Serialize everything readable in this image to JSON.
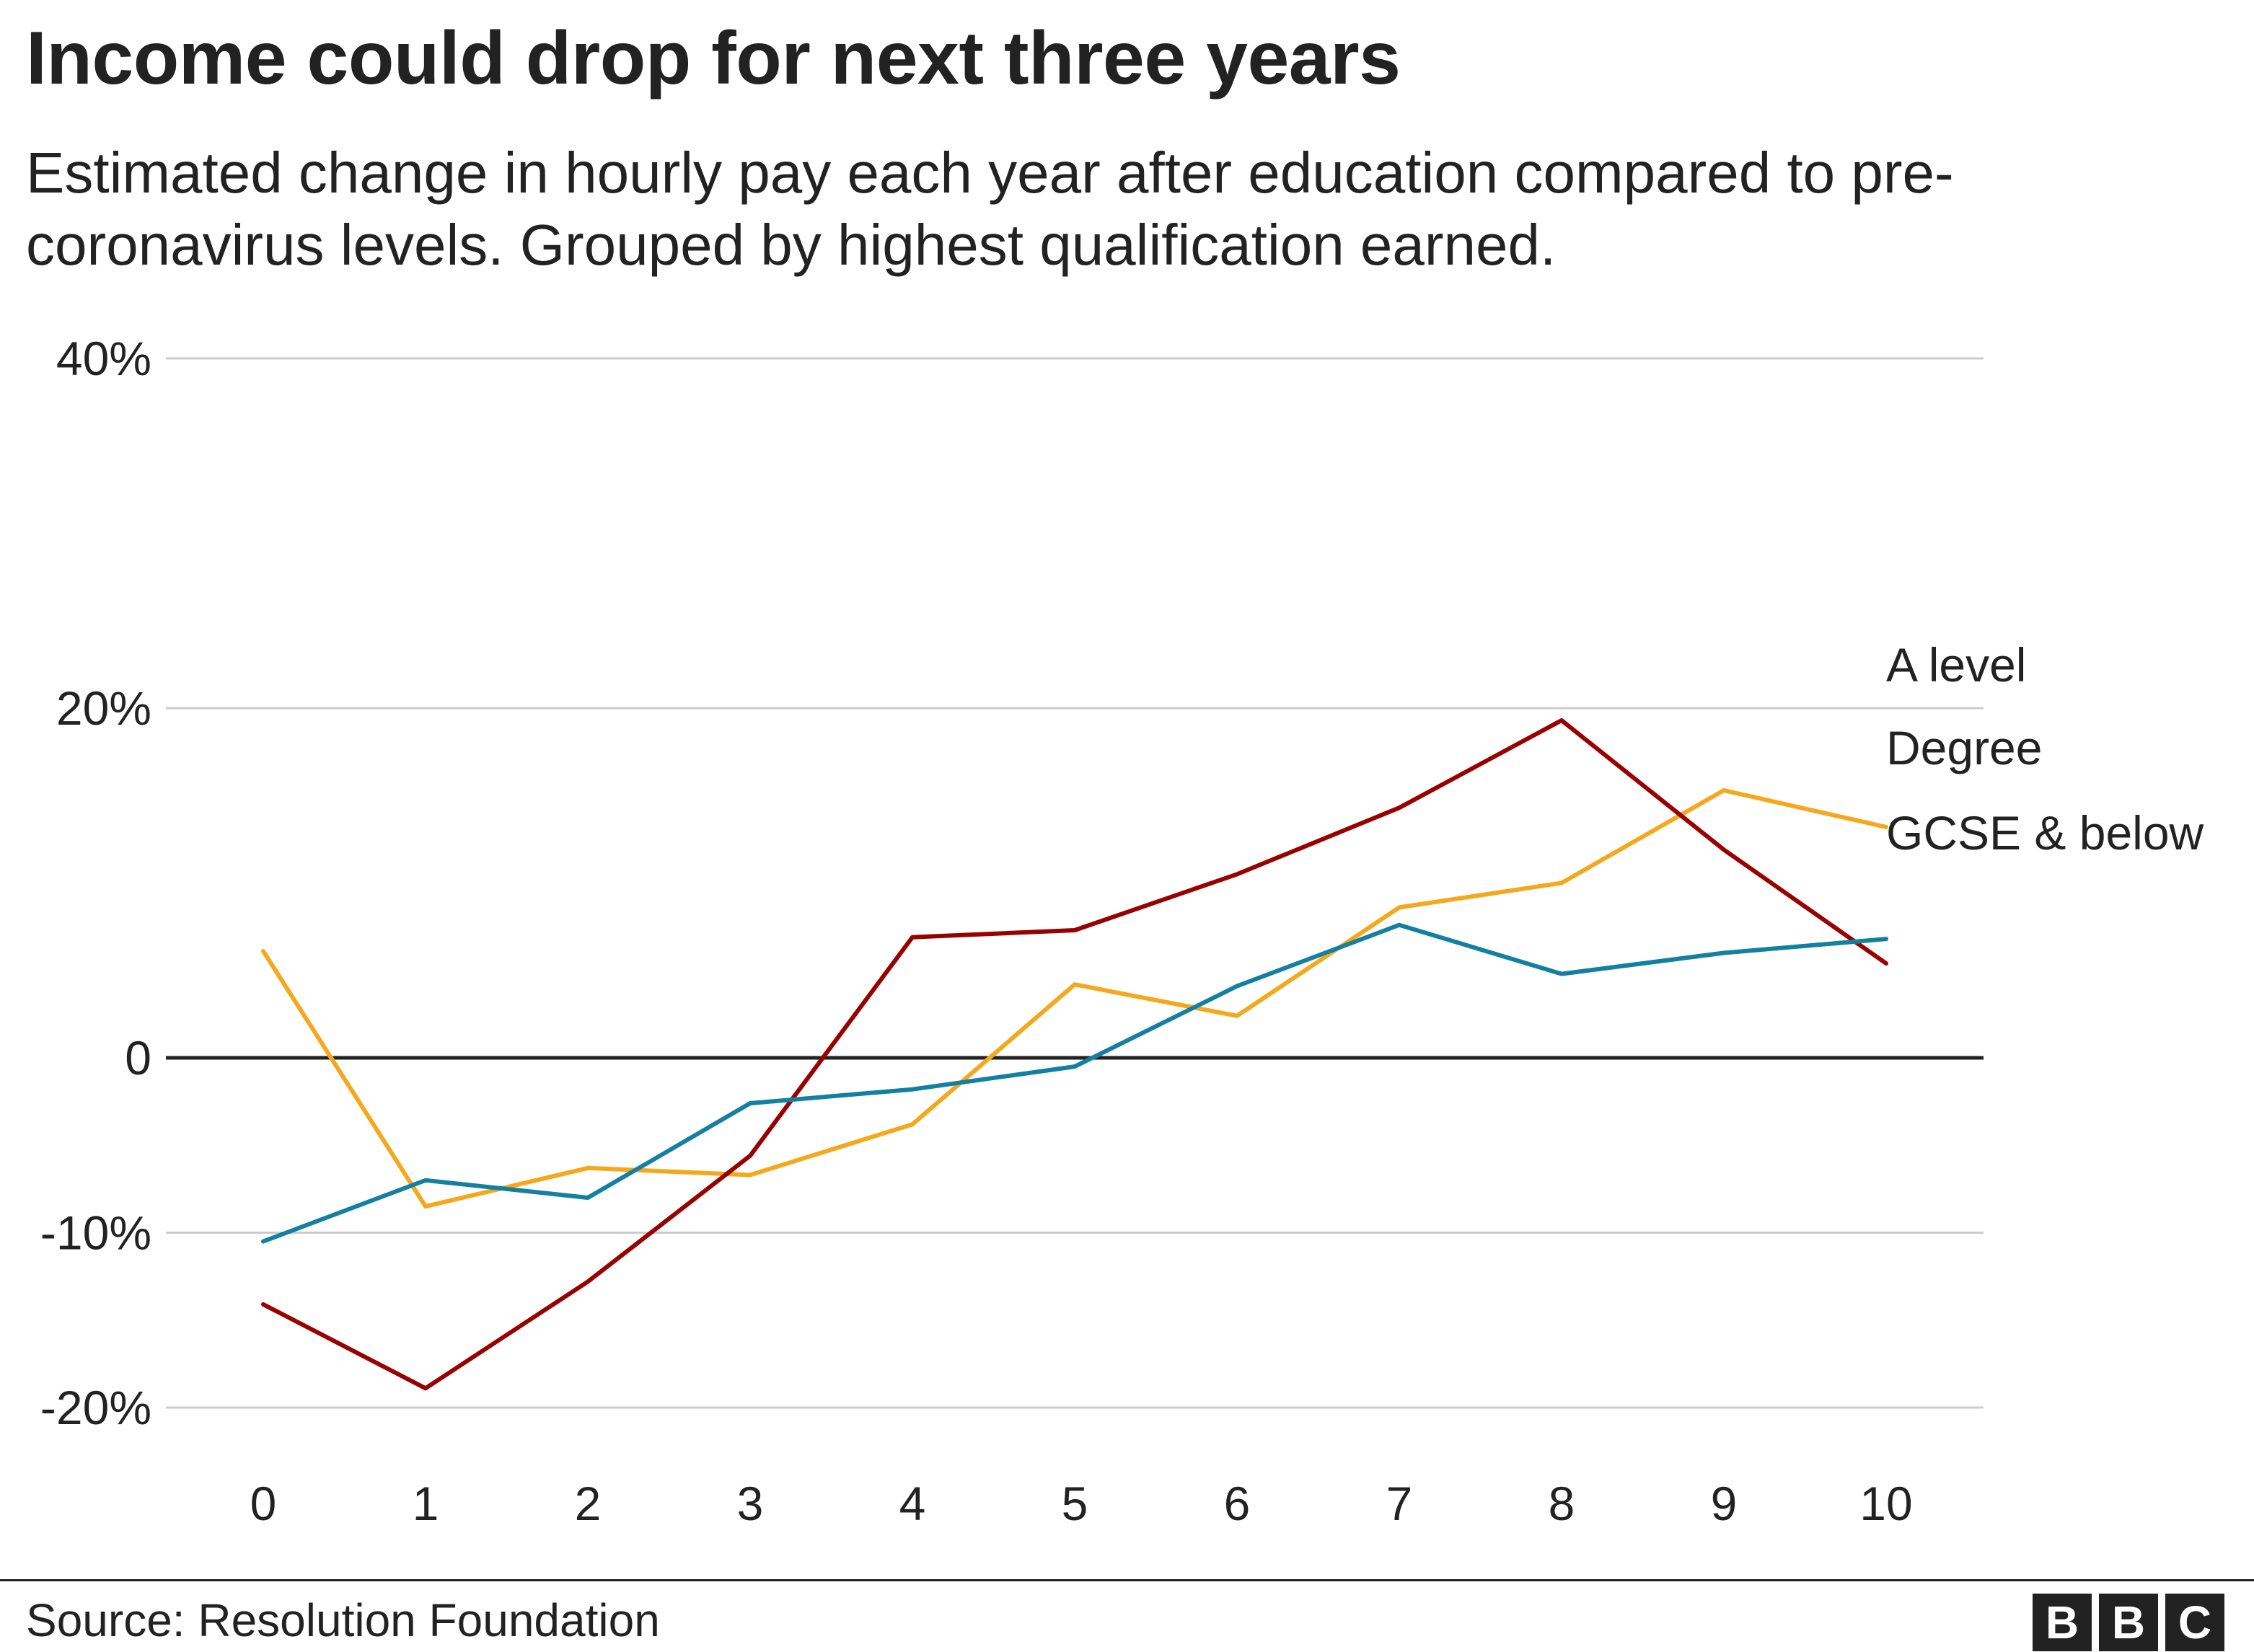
{
  "title": "Income could drop for next three years",
  "subtitle": "Estimated change in hourly pay each year after education compared to pre-coronavirus levels. Grouped by highest qualification earned.",
  "source": "Source: Resolution Foundation",
  "logo_letters": [
    "B",
    "B",
    "C"
  ],
  "chart_data": {
    "type": "line",
    "title": "Income could drop for next three years",
    "xlabel": "",
    "ylabel": "",
    "x": [
      0,
      1,
      2,
      3,
      4,
      5,
      6,
      7,
      8,
      9,
      10
    ],
    "ylim": [
      -20,
      40
    ],
    "yticks": [
      {
        "value": 40,
        "label": "40%"
      },
      {
        "value": 20,
        "label": "20%"
      },
      {
        "value": 0,
        "label": "0"
      },
      {
        "value": -10,
        "label": "-10%"
      },
      {
        "value": -20,
        "label": "-20%"
      }
    ],
    "grid": true,
    "series": [
      {
        "name": "A level",
        "color": "#f6a81c",
        "values": [
          6.1,
          -8.5,
          -6.3,
          -6.7,
          -3.8,
          4.2,
          2.4,
          8.6,
          10.0,
          15.3,
          13.2
        ]
      },
      {
        "name": "Degree",
        "color": "#990000",
        "values": [
          -14.1,
          -18.9,
          -12.8,
          -5.6,
          6.9,
          7.3,
          10.5,
          14.3,
          19.3,
          11.9,
          5.4
        ]
      },
      {
        "name": "GCSE & below",
        "color": "#1380a1",
        "values": [
          -10.5,
          -7.0,
          -8.0,
          -2.6,
          -1.8,
          -0.5,
          4.1,
          7.6,
          4.8,
          6.0,
          6.8
        ]
      }
    ]
  }
}
